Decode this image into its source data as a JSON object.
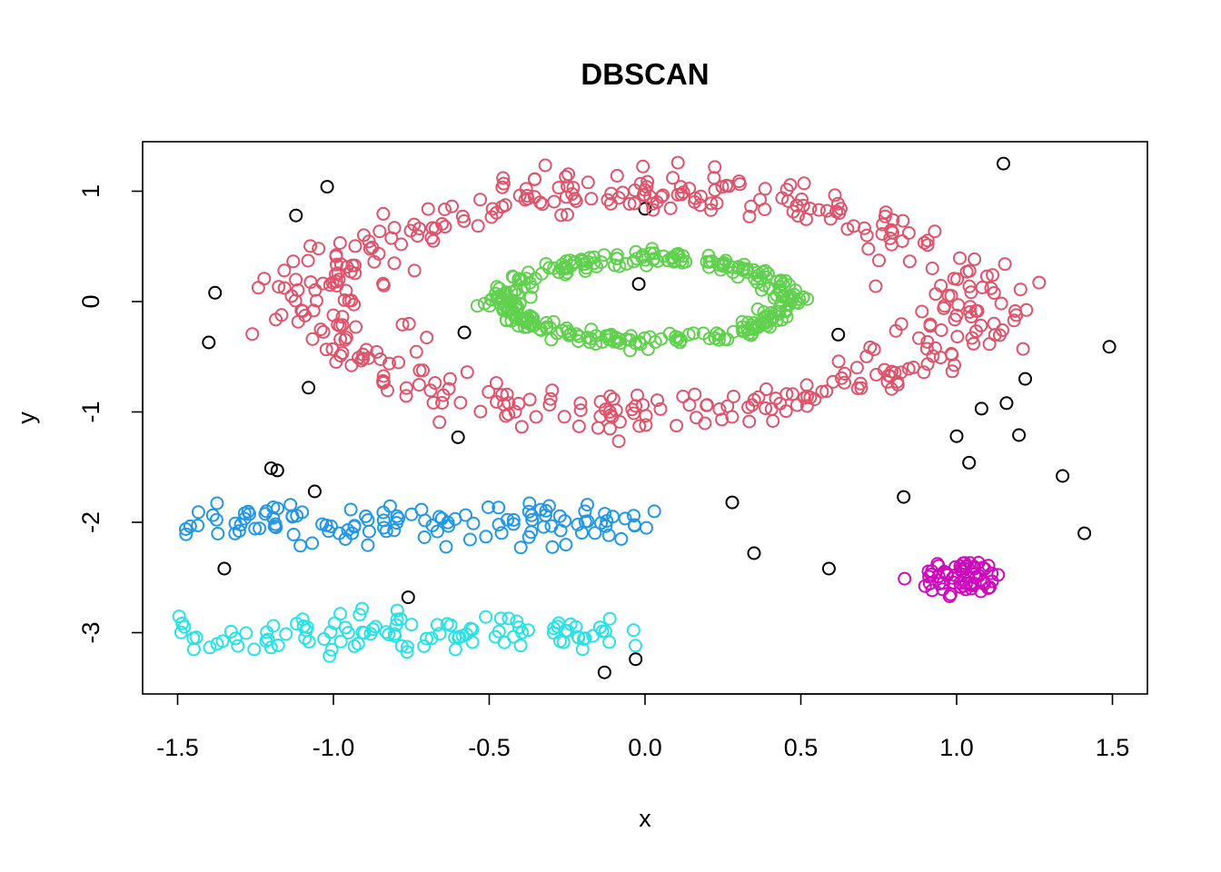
{
  "chart_data": {
    "type": "scatter",
    "title": "DBSCAN",
    "xlabel": "x",
    "ylabel": "y",
    "xlim": [
      -1.6,
      1.6
    ],
    "ylim": [
      -3.5,
      1.45
    ],
    "xticks": [
      -1.5,
      -1.0,
      -0.5,
      0.0,
      0.5,
      1.0,
      1.5
    ],
    "xtick_labels": [
      "-1.5",
      "-1.0",
      "-0.5",
      "0.0",
      "0.5",
      "1.0",
      "1.5"
    ],
    "yticks": [
      -3,
      -2,
      -1,
      0,
      1
    ],
    "ytick_labels": [
      "-3",
      "-2",
      "-1",
      "0",
      "1"
    ],
    "grid": false,
    "legend": "none",
    "marker": "open-circle",
    "clusters": [
      {
        "color": "#000000",
        "generator": "explicit",
        "points": [
          [
            -1.02,
            1.04
          ],
          [
            -1.12,
            0.78
          ],
          [
            0.0,
            0.84
          ],
          [
            1.15,
            1.25
          ],
          [
            -1.38,
            0.08
          ],
          [
            -1.4,
            -0.37
          ],
          [
            -0.58,
            -0.28
          ],
          [
            -0.02,
            0.16
          ],
          [
            0.62,
            -0.3
          ],
          [
            1.49,
            -0.41
          ],
          [
            1.22,
            -0.7
          ],
          [
            -1.08,
            -0.78
          ],
          [
            1.16,
            -0.92
          ],
          [
            1.08,
            -0.97
          ],
          [
            -0.6,
            -1.23
          ],
          [
            1.0,
            -1.22
          ],
          [
            1.2,
            -1.21
          ],
          [
            1.04,
            -1.46
          ],
          [
            -1.2,
            -1.51
          ],
          [
            -1.18,
            -1.53
          ],
          [
            1.34,
            -1.58
          ],
          [
            -1.06,
            -1.72
          ],
          [
            0.28,
            -1.82
          ],
          [
            0.83,
            -1.77
          ],
          [
            1.41,
            -2.1
          ],
          [
            0.35,
            -2.28
          ],
          [
            -1.35,
            -2.42
          ],
          [
            0.59,
            -2.42
          ],
          [
            -0.76,
            -2.68
          ],
          [
            -0.03,
            -3.24
          ],
          [
            -0.13,
            -3.36
          ]
        ]
      },
      {
        "color": "#DF536B",
        "generator": "ring",
        "center": [
          0.0,
          0.0
        ],
        "radii": [
          1.05,
          1.0
        ],
        "noise": 0.11,
        "count": 430
      },
      {
        "color": "#61D04F",
        "generator": "ring",
        "center": [
          0.01,
          0.02
        ],
        "radii": [
          0.45,
          0.38
        ],
        "noise": 0.035,
        "count": 300
      },
      {
        "color": "#2297E6",
        "generator": "band",
        "x_range": [
          -1.48,
          0.05
        ],
        "y_center": -2.01,
        "y_spread": 0.11,
        "count": 120
      },
      {
        "color": "#28E2E5",
        "generator": "band",
        "x_range": [
          -1.5,
          -0.03
        ],
        "y_center": -2.99,
        "y_spread": 0.1,
        "count": 110
      },
      {
        "color": "#CD0BBC",
        "generator": "blob",
        "center": [
          1.02,
          -2.5
        ],
        "spread": [
          0.07,
          0.08
        ],
        "count": 60
      }
    ]
  }
}
